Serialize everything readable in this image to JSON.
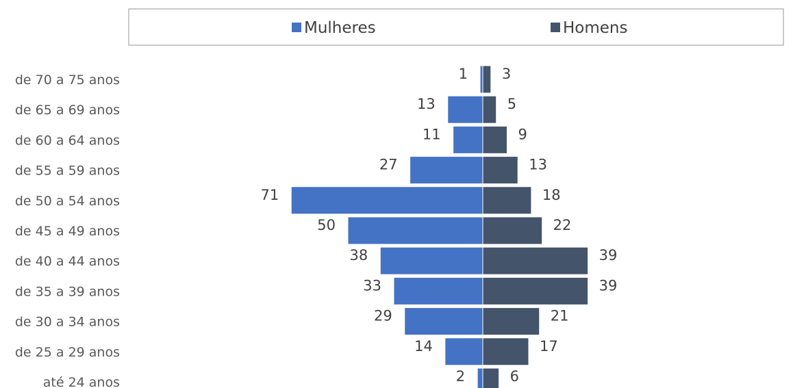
{
  "chart_data": {
    "type": "bar",
    "orientation": "horizontal",
    "layout": "population-pyramid",
    "categories": [
      "de 70 a 75 anos",
      "de 65 a 69 anos",
      "de 60 a 64 anos",
      "de 55 a 59 anos",
      "de 50 a 54 anos",
      "de 45 a 49 anos",
      "de 40 a 44 anos",
      "de 35 a 39 anos",
      "de 30 a 34 anos",
      "de 25 a 29 anos",
      "até 24 anos"
    ],
    "series": [
      {
        "name": "Mulheres",
        "color": "#4472C4",
        "side": "left",
        "values": [
          1,
          13,
          11,
          27,
          71,
          50,
          38,
          33,
          29,
          14,
          2
        ]
      },
      {
        "name": "Homens",
        "color": "#44546A",
        "side": "right",
        "values": [
          3,
          5,
          9,
          13,
          18,
          22,
          39,
          39,
          21,
          17,
          6
        ]
      }
    ],
    "legend_position": "top",
    "data_labels": true,
    "grid": false,
    "title": "",
    "xlabel": "",
    "ylabel": ""
  }
}
